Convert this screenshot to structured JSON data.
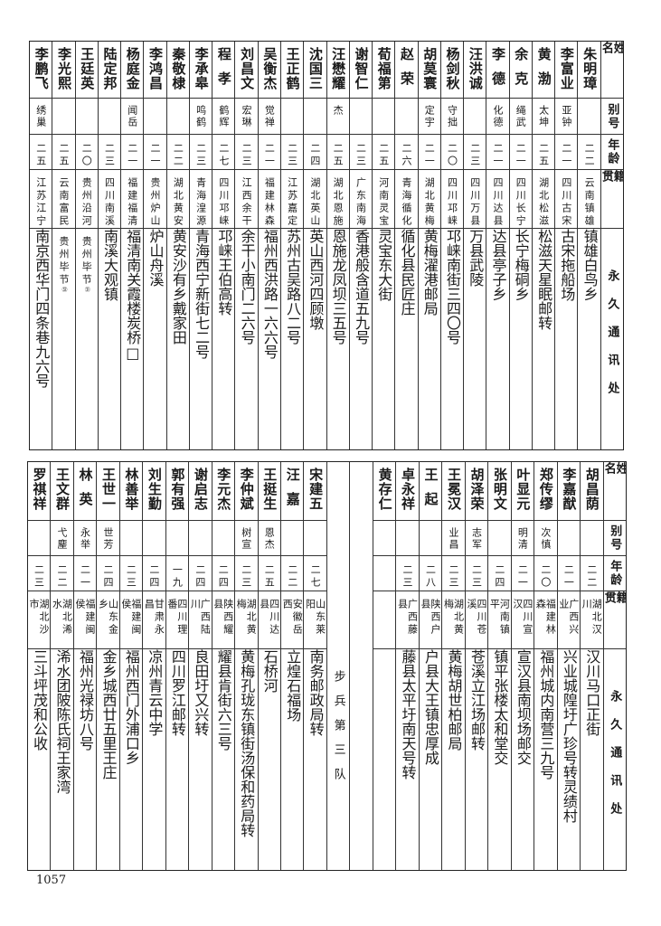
{
  "headers": {
    "name": "姓名",
    "alias": "别号",
    "age": "年龄",
    "origin": "籍贯",
    "address": "永久通讯处"
  },
  "top_table": {
    "rows": [
      {
        "name": "朱明璋",
        "alias": "",
        "age": "二二",
        "origin": "云南镇雄",
        "address": "镇雄白鸟乡"
      },
      {
        "name": "李富业",
        "alias": "亚钟",
        "age": "二一",
        "origin": "四川古宋",
        "address": "古宋拖船场"
      },
      {
        "name": "黄渤",
        "alias": "太坤",
        "age": "二五",
        "origin": "湖北松滋",
        "address": "松滋天星眠邮转"
      },
      {
        "name": "余克",
        "alias": "绳武",
        "age": "二一",
        "origin": "四川长宁",
        "address": "长宁梅硐乡"
      },
      {
        "name": "李德",
        "alias": "化德",
        "age": "二一",
        "origin": "四川达县",
        "address": "达县亭子乡"
      },
      {
        "name": "汪洪诚",
        "alias": "",
        "age": "二三",
        "origin": "四川万县",
        "address": "万县武陵"
      },
      {
        "name": "杨剑秋",
        "alias": "守拙",
        "age": "二〇",
        "origin": "四川邛崃",
        "address": "邛崃南街三四〇号"
      },
      {
        "name": "胡莫寰",
        "alias": "定宇",
        "age": "二一",
        "origin": "湖北黄梅",
        "address": "黄梅濯港邮局"
      },
      {
        "name": "赵荣",
        "alias": "",
        "age": "二六",
        "origin": "青海循化",
        "address": "循化县民匠庄"
      },
      {
        "name": "荀福第",
        "alias": "",
        "age": "二五",
        "origin": "河南灵宝",
        "address": "灵宝东大街"
      },
      {
        "name": "谢智仁",
        "alias": "",
        "age": "二三",
        "origin": "广东南海",
        "address": "香港般含道五九号"
      },
      {
        "name": "汪懋耀",
        "alias": "杰",
        "age": "二五",
        "origin": "湖北恩施",
        "address": "恩施龙凤坝三五号"
      },
      {
        "name": "沈国三",
        "alias": "",
        "age": "二四",
        "origin": "湖北英山",
        "address": "英山西河四顾墩"
      },
      {
        "name": "王正鹤",
        "alias": "",
        "age": "二三",
        "origin": "江苏嘉定",
        "address": "苏州古吴路八二号"
      },
      {
        "name": "吴衡杰",
        "alias": "觉禅",
        "age": "二一",
        "origin": "福建林森",
        "address": "福州西洪路一六六号"
      },
      {
        "name": "刘昌文",
        "alias": "宏琳",
        "age": "二三",
        "origin": "江西余干",
        "address": "余干小南门二六号"
      },
      {
        "name": "程孝",
        "alias": "鹤辉",
        "age": "二七",
        "origin": "四川邛崃",
        "address": "邛崃王伯高转"
      },
      {
        "name": "李承皋",
        "alias": "鸣鹤",
        "age": "二三",
        "origin": "青海湟源",
        "address": "青海西宁新街七二号"
      },
      {
        "name": "秦敬棣",
        "alias": "",
        "age": "二二",
        "origin": "湖北黄安",
        "address": "黄安沙有乡戴家田"
      },
      {
        "name": "李鸿昌",
        "alias": "",
        "age": "二一",
        "origin": "贵州炉山",
        "address": "炉山舟溪"
      },
      {
        "name": "杨庭金",
        "alias": "闻岳",
        "age": "二一",
        "origin": "福建福清",
        "address": "福清南关霞楼炭桥□"
      },
      {
        "name": "陆定邦",
        "alias": "",
        "age": "二三",
        "origin": "四川南溪",
        "address": "南溪大观镇"
      },
      {
        "name": "王廷英",
        "alias": "",
        "age": "二〇",
        "origin": "贵州沿河",
        "address": "贵州毕节",
        "note": "㉛"
      },
      {
        "name": "李光熙",
        "alias": "",
        "age": "二五",
        "origin": "云南富民",
        "address": "贵州毕节",
        "note": "㉜"
      },
      {
        "name": "李鹏飞",
        "alias": "绣巢",
        "age": "二五",
        "origin": "江苏江宁",
        "address": "南京西华门四条巷九六号"
      }
    ]
  },
  "bottom_table": {
    "rows_right": [
      {
        "name": "胡昌荫",
        "alias": "",
        "age": "二二",
        "origin": "湖北汉川",
        "address": "汉川马口正街"
      },
      {
        "name": "李嘉猷",
        "alias": "",
        "age": "二一",
        "origin": "广西兴业",
        "address": "兴业城隍圩广珍号转灵绩村"
      },
      {
        "name": "郑传缪",
        "alias": "次慎",
        "age": "二〇",
        "origin": "福建林森",
        "address": "福州城内南营三九号"
      },
      {
        "name": "叶显元",
        "alias": "明清",
        "age": "二一",
        "origin": "四川宣汉",
        "address": "宣汉县南坝场邮交"
      },
      {
        "name": "张明文",
        "alias": "",
        "age": "二四",
        "origin": "河南镇平",
        "address": "镇平张楼太和堂交"
      },
      {
        "name": "胡泽荣",
        "alias": "志军",
        "age": "二三",
        "origin": "四川苍溪",
        "address": "苍溪立江场邮转"
      },
      {
        "name": "王冕汉",
        "alias": "业昌",
        "age": "二三",
        "origin": "湖北黄梅",
        "address": "黄梅胡世柏邮局"
      },
      {
        "name": "王起",
        "alias": "",
        "age": "二八",
        "origin": "陕西户县",
        "address": "户县大王镇忠厚成"
      },
      {
        "name": "卓永祥",
        "alias": "",
        "age": "二三",
        "origin": "广西藤县",
        "address": "藤县太平圩南天号转"
      },
      {
        "name": "黄存仁",
        "alias": "",
        "age": "",
        "origin": "",
        "address": ""
      }
    ],
    "section_label": "步兵第三队",
    "rows_left": [
      {
        "name": "宋建五",
        "alias": "",
        "age": "二七",
        "origin": "山东莱阳",
        "address": "南务邮政局转"
      },
      {
        "name": "汪嘉",
        "alias": "",
        "age": "二二",
        "origin": "安徽岳西",
        "address": "立煌石福场"
      },
      {
        "name": "王挺生",
        "alias": "恩杰",
        "age": "二五",
        "origin": "四川达县",
        "address": "石桥河"
      },
      {
        "name": "李仲斌",
        "alias": "树宣",
        "age": "二三",
        "origin": "湖北黄梅",
        "address": "黄梅孔珑东镇街汤保和药局转"
      },
      {
        "name": "李元杰",
        "alias": "",
        "age": "二四",
        "origin": "陕西耀县",
        "address": "耀县肯街六三号"
      },
      {
        "name": "谢启志",
        "alias": "",
        "age": "二四",
        "origin": "广西陆川",
        "address": "良田圩又兴转"
      },
      {
        "name": "郭有强",
        "alias": "",
        "age": "一九",
        "origin": "四川理番",
        "address": "四川罗江邮转"
      },
      {
        "name": "刘生勤",
        "alias": "",
        "age": "二四",
        "origin": "甘肃永昌",
        "address": "凉州青云中学"
      },
      {
        "name": "林善举",
        "alias": "",
        "age": "二三",
        "origin": "福建闽侯",
        "address": "福州西门外浦口乡"
      },
      {
        "name": "王世一",
        "alias": "世芳",
        "age": "二四",
        "origin": "山东金乡",
        "address": "金乡城西廿五里王庄"
      },
      {
        "name": "林英",
        "alias": "永举",
        "age": "二一",
        "origin": "福建闽侯",
        "address": "福州光禄坊八号"
      },
      {
        "name": "王文群",
        "alias": "弋麈",
        "age": "二二",
        "origin": "湖北浠水",
        "address": "浠水团陂陈氏祠王家湾"
      },
      {
        "name": "罗祺祥",
        "alias": "",
        "age": "二三",
        "origin": "湖北沙市",
        "address": "三斗坪茂和公收"
      }
    ]
  },
  "page_number": "1057"
}
